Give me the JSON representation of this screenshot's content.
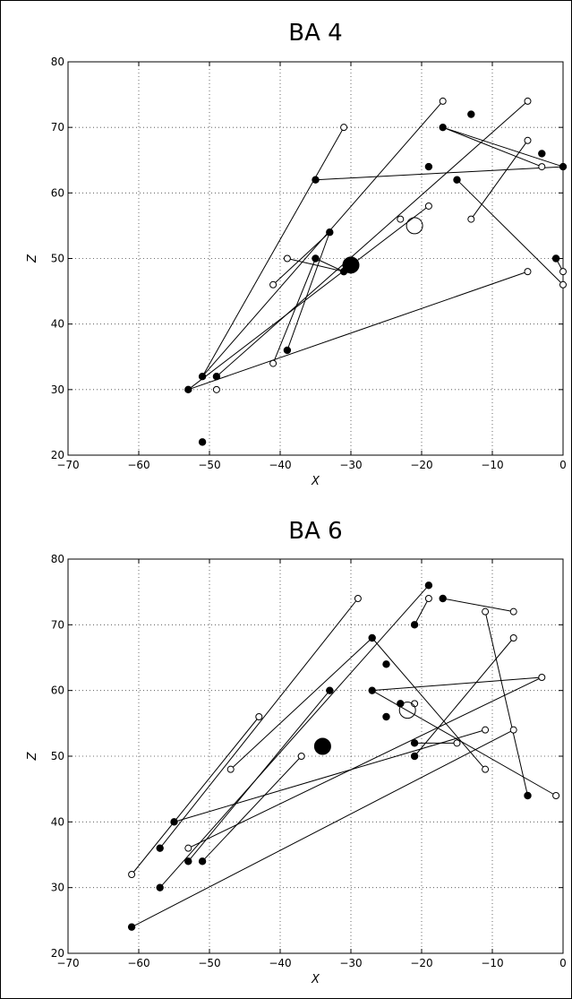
{
  "chart_data": [
    {
      "type": "scatter",
      "title": "BA 4",
      "xlabel": "X",
      "ylabel": "Z",
      "xlim": [
        -70,
        0
      ],
      "ylim": [
        20,
        80
      ],
      "xticks": [
        -70,
        -60,
        -50,
        -40,
        -30,
        -20,
        -10,
        0
      ],
      "yticks": [
        20,
        30,
        40,
        50,
        60,
        70,
        80
      ],
      "grid": true,
      "filled_points": [
        [
          -53,
          30
        ],
        [
          -51,
          32
        ],
        [
          -49,
          32
        ],
        [
          -51,
          22
        ],
        [
          -39,
          36
        ],
        [
          -35,
          50
        ],
        [
          -33,
          54
        ],
        [
          -35,
          62
        ],
        [
          -31,
          48
        ],
        [
          -19,
          64
        ],
        [
          -17,
          70
        ],
        [
          -13,
          72
        ],
        [
          -15,
          62
        ],
        [
          -3,
          66
        ],
        [
          0,
          64
        ],
        [
          -1,
          50
        ]
      ],
      "open_points": [
        [
          -31,
          70
        ],
        [
          -17,
          74
        ],
        [
          -5,
          74
        ],
        [
          -5,
          68
        ],
        [
          -3,
          64
        ],
        [
          -13,
          56
        ],
        [
          -19,
          58
        ],
        [
          -23,
          56
        ],
        [
          -39,
          50
        ],
        [
          -41,
          46
        ],
        [
          -41,
          34
        ],
        [
          -49,
          30
        ],
        [
          -5,
          48
        ],
        [
          0,
          48
        ],
        [
          0,
          46
        ]
      ],
      "mean_filled": [
        -30,
        49
      ],
      "mean_open": [
        -21,
        55
      ],
      "segments": [
        [
          [
            -51,
            32
          ],
          [
            -31,
            70
          ]
        ],
        [
          [
            -51,
            32
          ],
          [
            -17,
            74
          ]
        ],
        [
          [
            -49,
            32
          ],
          [
            -5,
            74
          ]
        ],
        [
          [
            -53,
            30
          ],
          [
            -19,
            58
          ]
        ],
        [
          [
            -53,
            30
          ],
          [
            -5,
            48
          ]
        ],
        [
          [
            -39,
            36
          ],
          [
            -33,
            54
          ]
        ],
        [
          [
            -41,
            34
          ],
          [
            -35,
            50
          ]
        ],
        [
          [
            -35,
            50
          ],
          [
            -31,
            48
          ]
        ],
        [
          [
            -41,
            46
          ],
          [
            -33,
            54
          ]
        ],
        [
          [
            -39,
            50
          ],
          [
            -31,
            48
          ]
        ],
        [
          [
            -35,
            62
          ],
          [
            0,
            64
          ]
        ],
        [
          [
            -17,
            70
          ],
          [
            0,
            64
          ]
        ],
        [
          [
            -17,
            70
          ],
          [
            -3,
            64
          ]
        ],
        [
          [
            -13,
            56
          ],
          [
            -5,
            68
          ]
        ],
        [
          [
            -15,
            62
          ],
          [
            0,
            46
          ]
        ],
        [
          [
            -1,
            50
          ],
          [
            0,
            48
          ]
        ]
      ]
    },
    {
      "type": "scatter",
      "title": "BA 6",
      "xlabel": "X",
      "ylabel": "Z",
      "xlim": [
        -70,
        0
      ],
      "ylim": [
        20,
        80
      ],
      "xticks": [
        -70,
        -60,
        -50,
        -40,
        -30,
        -20,
        -10,
        0
      ],
      "yticks": [
        20,
        30,
        40,
        50,
        60,
        70,
        80
      ],
      "grid": true,
      "filled_points": [
        [
          -61,
          24
        ],
        [
          -57,
          30
        ],
        [
          -57,
          36
        ],
        [
          -53,
          34
        ],
        [
          -55,
          40
        ],
        [
          -51,
          34
        ],
        [
          -33,
          60
        ],
        [
          -27,
          68
        ],
        [
          -25,
          64
        ],
        [
          -25,
          56
        ],
        [
          -27,
          60
        ],
        [
          -23,
          58
        ],
        [
          -21,
          70
        ],
        [
          -19,
          76
        ],
        [
          -17,
          74
        ],
        [
          -21,
          52
        ],
        [
          -21,
          50
        ],
        [
          -5,
          44
        ]
      ],
      "open_points": [
        [
          -61,
          32
        ],
        [
          -53,
          36
        ],
        [
          -47,
          48
        ],
        [
          -43,
          56
        ],
        [
          -37,
          50
        ],
        [
          -29,
          74
        ],
        [
          -19,
          74
        ],
        [
          -11,
          72
        ],
        [
          -7,
          72
        ],
        [
          -7,
          68
        ],
        [
          -3,
          62
        ],
        [
          -21,
          58
        ],
        [
          -15,
          52
        ],
        [
          -11,
          54
        ],
        [
          -7,
          54
        ],
        [
          -11,
          48
        ],
        [
          -1,
          44
        ]
      ],
      "mean_filled": [
        -34,
        51.5
      ],
      "mean_open": [
        -22,
        57
      ],
      "segments": [
        [
          [
            -61,
            24
          ],
          [
            -7,
            54
          ]
        ],
        [
          [
            -57,
            30
          ],
          [
            -19,
            76
          ]
        ],
        [
          [
            -57,
            36
          ],
          [
            -29,
            74
          ]
        ],
        [
          [
            -55,
            40
          ],
          [
            -11,
            54
          ]
        ],
        [
          [
            -53,
            34
          ],
          [
            -33,
            60
          ]
        ],
        [
          [
            -61,
            32
          ],
          [
            -43,
            56
          ]
        ],
        [
          [
            -51,
            34
          ],
          [
            -37,
            50
          ]
        ],
        [
          [
            -47,
            48
          ],
          [
            -27,
            68
          ]
        ],
        [
          [
            -53,
            36
          ],
          [
            -3,
            62
          ]
        ],
        [
          [
            -27,
            60
          ],
          [
            -3,
            62
          ]
        ],
        [
          [
            -27,
            68
          ],
          [
            -11,
            48
          ]
        ],
        [
          [
            -27,
            60
          ],
          [
            -1,
            44
          ]
        ],
        [
          [
            -21,
            50
          ],
          [
            -7,
            68
          ]
        ],
        [
          [
            -21,
            52
          ],
          [
            -15,
            52
          ]
        ],
        [
          [
            -21,
            70
          ],
          [
            -19,
            74
          ]
        ],
        [
          [
            -17,
            74
          ],
          [
            -7,
            72
          ]
        ],
        [
          [
            -11,
            72
          ],
          [
            -5,
            44
          ]
        ]
      ]
    }
  ]
}
